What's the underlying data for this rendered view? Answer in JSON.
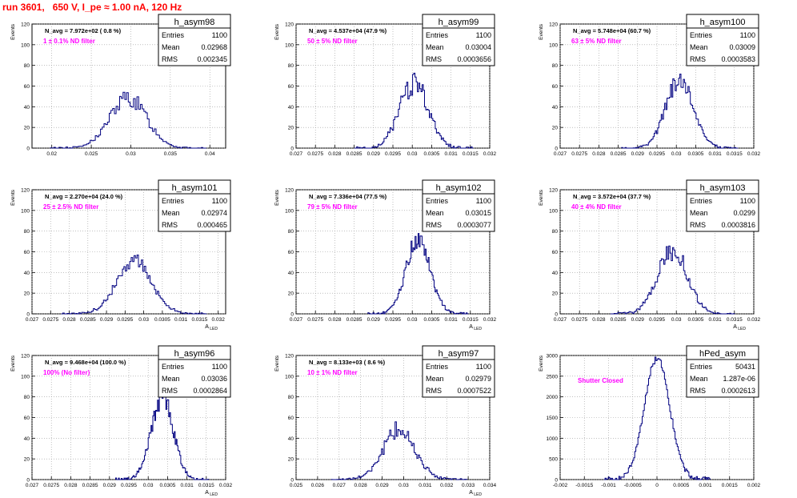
{
  "page": {
    "title": "run 3601,   650 V, I_pe ≈ 1.00 nA, 120 Hz"
  },
  "chart_data": [
    {
      "type": "histogram",
      "name": "h_asym98",
      "ylabel": "Events",
      "xlabel": "",
      "navg": "N_avg = 7.972e+02 ( 0.8 %)",
      "filter": "1 ± 0.1% ND filter",
      "stats": {
        "entries": "1100",
        "mean": "0.02968",
        "rms": "0.002345"
      },
      "xlim": [
        0.0175,
        0.042
      ],
      "ylim": [
        0,
        120
      ],
      "xticks": [
        0.02,
        0.025,
        0.03,
        0.035,
        0.04
      ],
      "xtick_labels": [
        "0.02",
        "0.025",
        "0.03",
        "0.035",
        "0.04"
      ],
      "yticks": [
        0,
        20,
        40,
        60,
        80,
        100,
        120
      ],
      "ytick_labels": [
        "0",
        "20",
        "40",
        "60",
        "80",
        "100",
        "120"
      ],
      "dist": {
        "mean": 0.02968,
        "sigma": 0.00235,
        "peak": 48,
        "bins": 90,
        "noise": 0.18
      }
    },
    {
      "type": "histogram",
      "name": "h_asym99",
      "ylabel": "Events",
      "xlabel": "",
      "navg": "N_avg = 4.537e+04 (47.9 %)",
      "filter": "50 ± 5% ND filter",
      "stats": {
        "entries": "1100",
        "mean": "0.03004",
        "rms": "0.0003656"
      },
      "xlim": [
        0.027,
        0.032
      ],
      "ylim": [
        0,
        120
      ],
      "xticks": [
        0.027,
        0.0275,
        0.028,
        0.0285,
        0.029,
        0.0295,
        0.03,
        0.0305,
        0.031,
        0.0315,
        0.032
      ],
      "xtick_labels": [
        "0.027",
        "0.0275",
        "0.028",
        "0.0285",
        "0.029",
        "0.0295",
        "0.03",
        "0.0305",
        "0.031",
        "0.0315",
        "0.032"
      ],
      "yticks": [
        0,
        20,
        40,
        60,
        80,
        100,
        120
      ],
      "ytick_labels": [
        "0",
        "20",
        "40",
        "60",
        "80",
        "100",
        "120"
      ],
      "dist": {
        "mean": 0.03004,
        "sigma": 0.000366,
        "peak": 63,
        "bins": 100,
        "noise": 0.18
      }
    },
    {
      "type": "histogram",
      "name": "h_asym100",
      "ylabel": "Events",
      "xlabel": "",
      "navg": "N_avg = 5.748e+04 (60.7 %)",
      "filter": "63 ± 5% ND filter",
      "stats": {
        "entries": "1100",
        "mean": "0.03009",
        "rms": "0.0003583"
      },
      "xlim": [
        0.027,
        0.032
      ],
      "ylim": [
        0,
        120
      ],
      "xticks": [
        0.027,
        0.0275,
        0.028,
        0.0285,
        0.029,
        0.0295,
        0.03,
        0.0305,
        0.031,
        0.0315,
        0.032
      ],
      "xtick_labels": [
        "0.027",
        "0.0275",
        "0.028",
        "0.0285",
        "0.029",
        "0.0295",
        "0.03",
        "0.0305",
        "0.031",
        "0.0315",
        "0.032"
      ],
      "yticks": [
        0,
        20,
        40,
        60,
        80,
        100,
        120
      ],
      "ytick_labels": [
        "0",
        "20",
        "40",
        "60",
        "80",
        "100",
        "120"
      ],
      "dist": {
        "mean": 0.03009,
        "sigma": 0.000358,
        "peak": 65,
        "bins": 100,
        "noise": 0.15
      }
    },
    {
      "type": "histogram",
      "name": "h_asym101",
      "ylabel": "Events",
      "xlabel": "A_{LED}",
      "navg": "N_avg = 2.270e+04 (24.0 %)",
      "filter": "25 ± 2.5% ND filter",
      "stats": {
        "entries": "1100",
        "mean": "0.02974",
        "rms": "0.000465"
      },
      "xlim": [
        0.027,
        0.0322
      ],
      "ylim": [
        0,
        120
      ],
      "xticks": [
        0.027,
        0.0275,
        0.028,
        0.0285,
        0.029,
        0.0295,
        0.03,
        0.0305,
        0.031,
        0.0315,
        0.032
      ],
      "xtick_labels": [
        "0.027",
        "0.0275",
        "0.028",
        "0.0285",
        "0.029",
        "0.0295",
        "0.03",
        "0.0305",
        "0.031",
        "0.0315",
        "0.032"
      ],
      "yticks": [
        0,
        20,
        40,
        60,
        80,
        100,
        120
      ],
      "ytick_labels": [
        "0",
        "20",
        "40",
        "60",
        "80",
        "100",
        "120"
      ],
      "dist": {
        "mean": 0.02974,
        "sigma": 0.000465,
        "peak": 52,
        "bins": 100,
        "noise": 0.16
      }
    },
    {
      "type": "histogram",
      "name": "h_asym102",
      "ylabel": "Events",
      "xlabel": "A_{LED}",
      "navg": "N_avg = 7.336e+04 (77.5 %)",
      "filter": "79 ± 5% ND filter",
      "stats": {
        "entries": "1100",
        "mean": "0.03015",
        "rms": "0.0003077"
      },
      "xlim": [
        0.027,
        0.032
      ],
      "ylim": [
        0,
        120
      ],
      "xticks": [
        0.027,
        0.0275,
        0.028,
        0.0285,
        0.029,
        0.0295,
        0.03,
        0.0305,
        0.031,
        0.0315,
        0.032
      ],
      "xtick_labels": [
        "0.027",
        "0.0275",
        "0.028",
        "0.0285",
        "0.029",
        "0.0295",
        "0.03",
        "0.0305",
        "0.031",
        "0.0315",
        "0.032"
      ],
      "yticks": [
        0,
        20,
        40,
        60,
        80,
        100,
        120
      ],
      "ytick_labels": [
        "0",
        "20",
        "40",
        "60",
        "80",
        "100",
        "120"
      ],
      "dist": {
        "mean": 0.03015,
        "sigma": 0.000308,
        "peak": 74,
        "bins": 100,
        "noise": 0.14
      }
    },
    {
      "type": "histogram",
      "name": "h_asym103",
      "ylabel": "Events",
      "xlabel": "A_{LED}",
      "navg": "N_avg = 3.572e+04 (37.7 %)",
      "filter": "40 ± 4% ND filter",
      "stats": {
        "entries": "1100",
        "mean": "0.0299",
        "rms": "0.0003816"
      },
      "xlim": [
        0.027,
        0.032
      ],
      "ylim": [
        0,
        120
      ],
      "xticks": [
        0.027,
        0.0275,
        0.028,
        0.0285,
        0.029,
        0.0295,
        0.03,
        0.0305,
        0.031,
        0.0315,
        0.032
      ],
      "xtick_labels": [
        "0.027",
        "0.0275",
        "0.028",
        "0.0285",
        "0.029",
        "0.0295",
        "0.03",
        "0.0305",
        "0.031",
        "0.0315",
        "0.032"
      ],
      "yticks": [
        0,
        20,
        40,
        60,
        80,
        100,
        120
      ],
      "ytick_labels": [
        "0",
        "20",
        "40",
        "60",
        "80",
        "100",
        "120"
      ],
      "dist": {
        "mean": 0.0299,
        "sigma": 0.000382,
        "peak": 62,
        "bins": 100,
        "noise": 0.16
      }
    },
    {
      "type": "histogram",
      "name": "h_asym96",
      "ylabel": "Events",
      "xlabel": "A_{LED}",
      "navg": "N_avg = 9.468e+04 (100.0 %)",
      "filter": "100% (No filter)",
      "stats": {
        "entries": "1100",
        "mean": "0.03036",
        "rms": "0.0002864"
      },
      "xlim": [
        0.027,
        0.032
      ],
      "ylim": [
        0,
        120
      ],
      "xticks": [
        0.027,
        0.0275,
        0.028,
        0.0285,
        0.029,
        0.0295,
        0.03,
        0.0305,
        0.031,
        0.0315,
        0.032
      ],
      "xtick_labels": [
        "0.027",
        "0.0275",
        "0.028",
        "0.0285",
        "0.029",
        "0.0295",
        "0.03",
        "0.0305",
        "0.031",
        "0.0315",
        "0.032"
      ],
      "yticks": [
        0,
        20,
        40,
        60,
        80,
        100,
        120
      ],
      "ytick_labels": [
        "0",
        "20",
        "40",
        "60",
        "80",
        "100",
        "120"
      ],
      "dist": {
        "mean": 0.03036,
        "sigma": 0.000286,
        "peak": 78,
        "bins": 100,
        "noise": 0.15
      }
    },
    {
      "type": "histogram",
      "name": "h_asym97",
      "ylabel": "Events",
      "xlabel": "A_{LED}",
      "navg": "N_avg = 8.133e+03 ( 8.6 %)",
      "filter": "10 ± 1% ND filter",
      "stats": {
        "entries": "1100",
        "mean": "0.02979",
        "rms": "0.0007522"
      },
      "xlim": [
        0.025,
        0.034
      ],
      "ylim": [
        0,
        120
      ],
      "xticks": [
        0.025,
        0.026,
        0.027,
        0.028,
        0.029,
        0.03,
        0.031,
        0.032,
        0.033,
        0.034
      ],
      "xtick_labels": [
        "0.025",
        "0.026",
        "0.027",
        "0.028",
        "0.029",
        "0.03",
        "0.031",
        "0.032",
        "0.033",
        "0.034"
      ],
      "yticks": [
        0,
        20,
        40,
        60,
        80,
        100,
        120
      ],
      "ytick_labels": [
        "0",
        "20",
        "40",
        "60",
        "80",
        "100",
        "120"
      ],
      "dist": {
        "mean": 0.02979,
        "sigma": 0.000752,
        "peak": 48,
        "bins": 100,
        "noise": 0.18
      }
    },
    {
      "type": "histogram",
      "name": "hPed_asym",
      "ylabel": "Events",
      "xlabel": "",
      "navg": "",
      "filter": "Shutter Closed",
      "stats": {
        "entries": "50431",
        "mean": "1.287e-06",
        "rms": "0.0002613"
      },
      "xlim": [
        -0.002,
        0.002
      ],
      "ylim": [
        0,
        3000
      ],
      "xticks": [
        -0.002,
        -0.0015,
        -0.001,
        -0.0005,
        0,
        0.0005,
        0.001,
        0.0015,
        0.002
      ],
      "xtick_labels": [
        "-0.002",
        "-0.0015",
        "-0.001",
        "-0.0005",
        "0",
        "0.0005",
        "0.001",
        "0.0015",
        "0.002"
      ],
      "yticks": [
        0,
        500,
        1000,
        1500,
        2000,
        2500,
        3000
      ],
      "ytick_labels": [
        "0",
        "500",
        "1000",
        "1500",
        "2000",
        "2500",
        "3000"
      ],
      "dist": {
        "mean": 1.3e-06,
        "sigma": 0.000261,
        "peak": 2950,
        "bins": 100,
        "noise": 0.02
      }
    }
  ],
  "style": {
    "hist_color": "#000080",
    "title_color": "#ff0000",
    "filter_color": "#ff00ff",
    "grid_color": "#9a9a9a"
  },
  "labels": {
    "stats_entries": "Entries",
    "stats_mean": "Mean",
    "stats_rms": "RMS"
  }
}
